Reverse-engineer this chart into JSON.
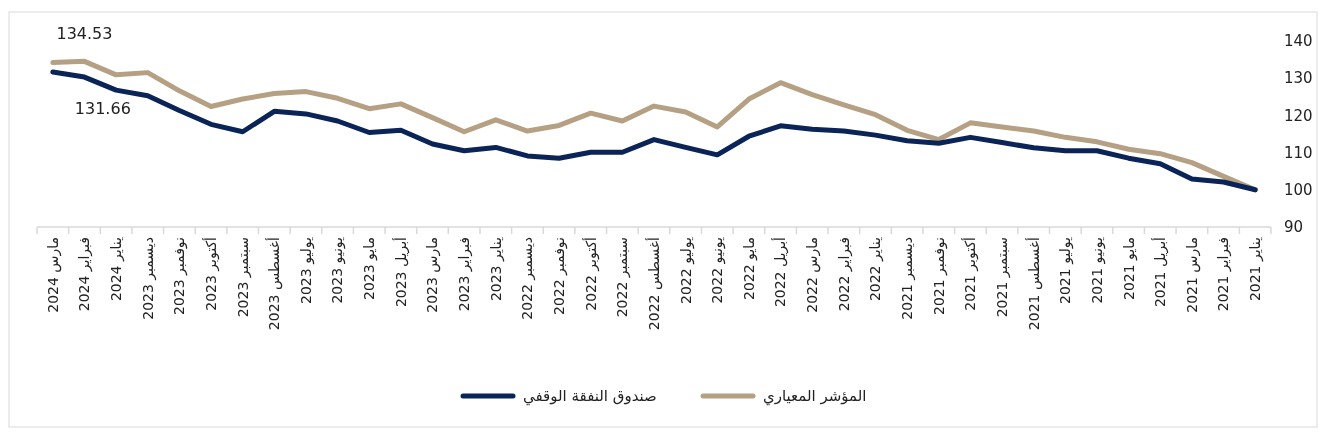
{
  "chart_data": {
    "type": "line",
    "categories": [
      "مارس 2024",
      "فبراير 2024",
      "يناير 2024",
      "ديسمبر 2023",
      "نوفمبر 2023",
      "أكتوبر 2023",
      "سبتمبر 2023",
      "أغسطس 2023",
      "يوليو 2023",
      "يونيو 2023",
      "مايو 2023",
      "أبريل 2023",
      "مارس 2023",
      "فبراير 2023",
      "يناير 2023",
      "ديسمبر 2022",
      "نوفمبر 2022",
      "أكتوبر 2022",
      "سبتمبر 2022",
      "أغسطس 2022",
      "يوليو 2022",
      "يونيو 2022",
      "مايو 2022",
      "أبريل 2022",
      "مارس 2022",
      "فبراير 2022",
      "يناير 2022",
      "ديسمبر 2021",
      "نوفمبر 2021",
      "أكتوبر 2021",
      "سبتمبر 2021",
      "أغسطس 2021",
      "يوليو 2021",
      "يونيو 2021",
      "مايو 2021",
      "أبريل 2021",
      "مارس 2021",
      "فبراير 2021",
      "يناير 2021"
    ],
    "series": [
      {
        "name": "المؤشر المعياري",
        "color": "#b5a083",
        "values": [
          134.2,
          134.53,
          130.9,
          131.5,
          126.6,
          122.4,
          124.4,
          125.9,
          126.4,
          124.6,
          121.8,
          123.1,
          119.4,
          115.6,
          118.8,
          115.8,
          117.3,
          120.6,
          118.5,
          122.5,
          120.9,
          116.9,
          124.4,
          128.8,
          125.6,
          122.8,
          120.2,
          116.0,
          113.5,
          118.0,
          116.9,
          115.8,
          114.1,
          112.9,
          110.9,
          109.7,
          107.3,
          103.6,
          100
        ]
      },
      {
        "name": "صندوق النفقة الوقفي",
        "color": "#0a2458",
        "values": [
          131.66,
          130.3,
          126.8,
          125.3,
          121.3,
          117.6,
          115.6,
          121.1,
          120.4,
          118.5,
          115.4,
          116.0,
          112.3,
          110.5,
          111.4,
          109.1,
          108.5,
          110.1,
          110.1,
          113.5,
          111.4,
          109.4,
          114.4,
          117.2,
          116.3,
          115.8,
          114.7,
          113.2,
          112.5,
          114.1,
          112.7,
          111.3,
          110.5,
          110.5,
          108.5,
          107.0,
          102.9,
          102.1,
          100
        ]
      }
    ],
    "ylim": [
      90,
      140
    ],
    "yticks": [
      90,
      100,
      110,
      120,
      130,
      140
    ],
    "annotations": [
      {
        "text": "134.53",
        "x": "فبراير 2024",
        "y": 134.53
      },
      {
        "text": "131.66",
        "x": "مارس 2024",
        "y": 131.66
      }
    ],
    "grid": false,
    "legend": "bottom"
  }
}
